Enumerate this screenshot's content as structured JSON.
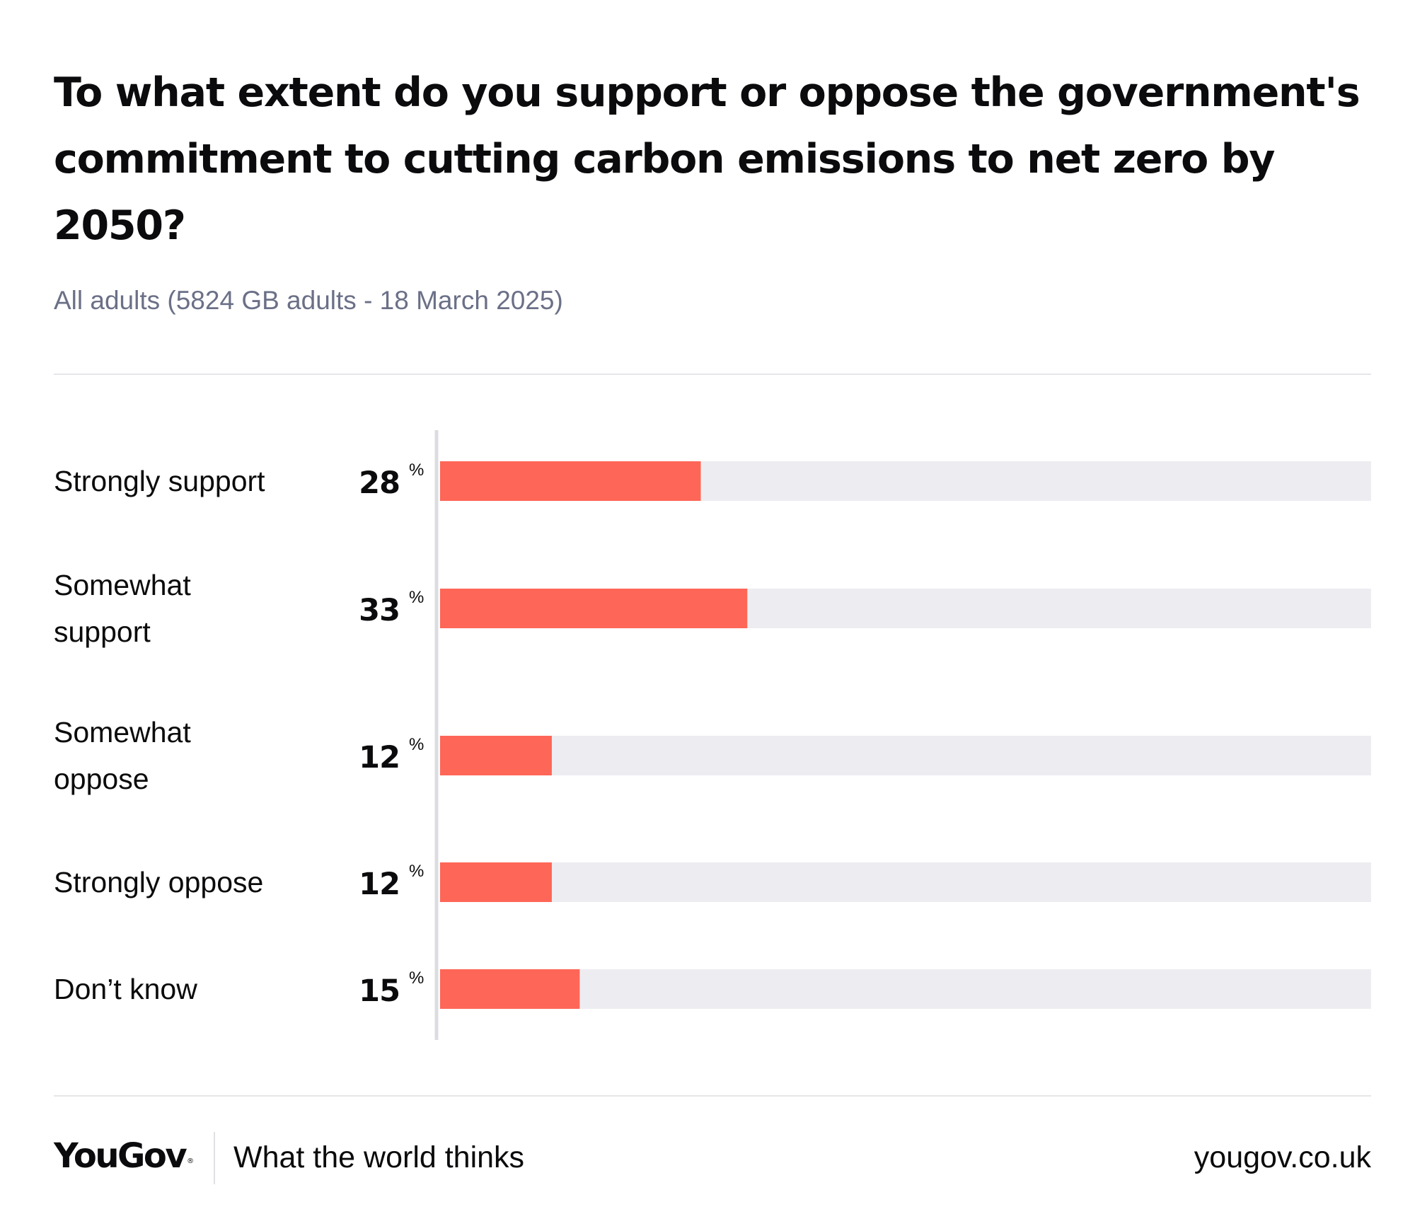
{
  "chart_data": {
    "type": "bar",
    "orientation": "horizontal",
    "title": "To what extent do you support or oppose the government's commitment to cutting carbon emissions to net zero by 2050?",
    "subtitle": "All adults (5824 GB adults - 18 March 2025)",
    "categories": [
      [
        "Strongly support"
      ],
      [
        "Somewhat",
        "support"
      ],
      [
        "Somewhat",
        "oppose"
      ],
      [
        "Strongly oppose"
      ],
      [
        "Don’t know"
      ]
    ],
    "values": [
      28,
      33,
      12,
      12,
      15
    ],
    "value_labels": [
      "28",
      "33",
      "12",
      "12",
      "15"
    ],
    "unit": "%",
    "xlim": [
      0,
      100
    ],
    "grid": false,
    "legend": "none",
    "colors": {
      "bar": "#fe6657",
      "track": "#ededf1",
      "axis": "#dcdce2",
      "text": "#0b0b0d"
    }
  },
  "footer": {
    "logo": "YouGov",
    "logo_mark": "®",
    "tagline": "What the world thinks",
    "url": "yougov.co.uk"
  }
}
